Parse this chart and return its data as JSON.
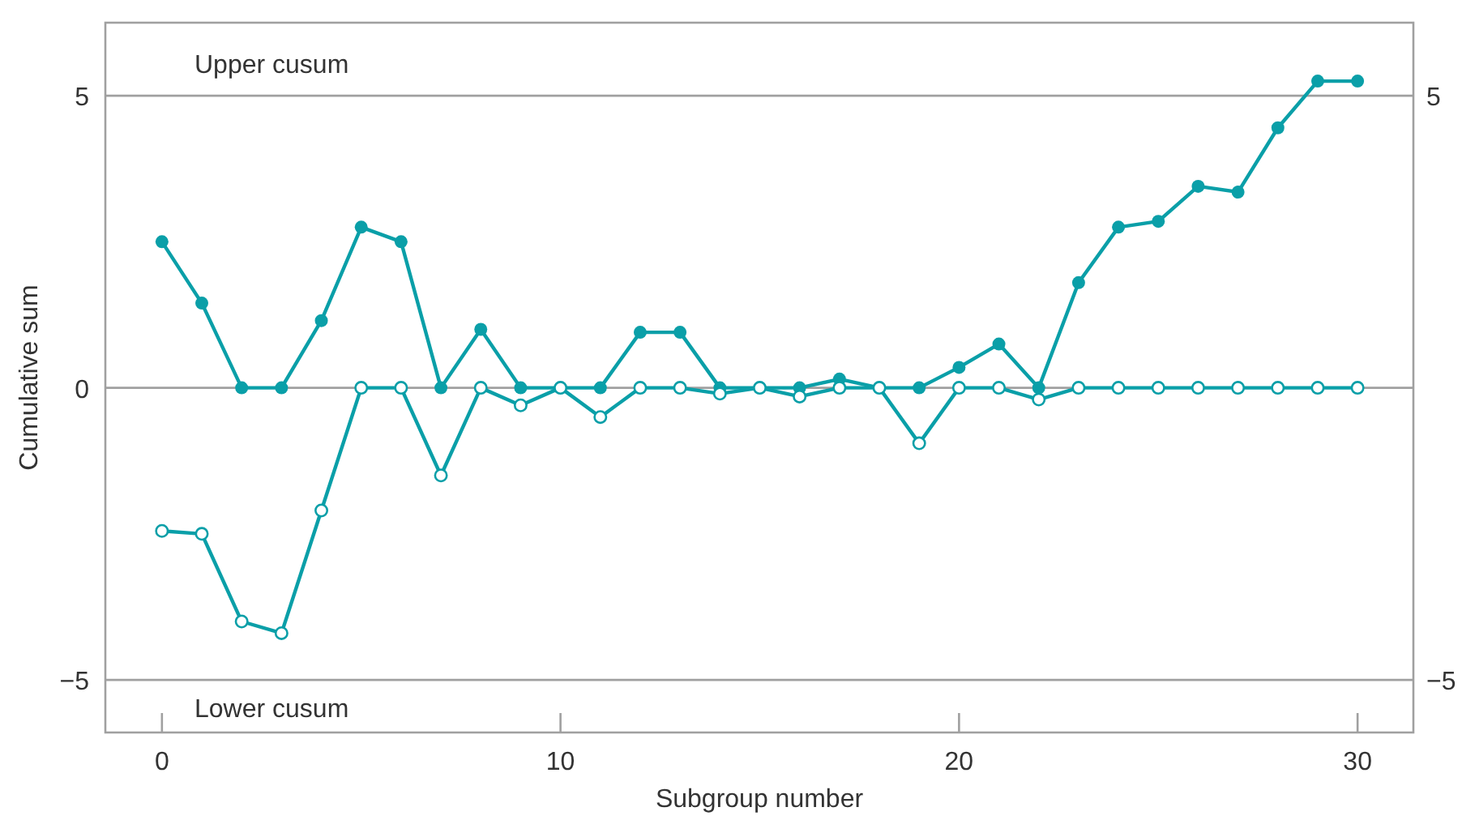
{
  "chart_data": {
    "type": "line",
    "xlabel": "Subgroup number",
    "ylabel": "Cumulative sum",
    "x": [
      0,
      1,
      2,
      3,
      4,
      5,
      6,
      7,
      8,
      9,
      10,
      11,
      12,
      13,
      14,
      15,
      16,
      17,
      18,
      19,
      20,
      21,
      22,
      23,
      24,
      25,
      26,
      27,
      28,
      29,
      30
    ],
    "series": [
      {
        "color": "#0a9fa8",
        "marker": "circle",
        "values": [
          2.5,
          1.45,
          0,
          0,
          1.15,
          2.75,
          2.5,
          0,
          1.0,
          0,
          0,
          0,
          0.95,
          0.95,
          0,
          0,
          0,
          0.15,
          0,
          0,
          0.35,
          0.75,
          0,
          1.8,
          2.75,
          2.85,
          3.45,
          3.35,
          4.45,
          5.25,
          5.25
        ]
      },
      {
        "color": "#0a9fa8",
        "marker": "circle",
        "values": [
          -2.45,
          -2.5,
          -4.0,
          -4.2,
          -2.1,
          0,
          0,
          -1.5,
          0,
          -0.3,
          0,
          -0.5,
          0,
          0,
          -0.1,
          0,
          -0.15,
          0,
          0,
          -0.95,
          0,
          0,
          -0.2,
          0,
          0,
          0,
          0,
          0,
          0,
          0,
          0
        ]
      }
    ],
    "xlim": [
      -1.42,
      31.4
    ],
    "xticks": [
      0,
      10,
      20,
      30
    ],
    "ylim": [
      -5.9,
      6.25
    ],
    "yticks": [
      {
        "value": -5,
        "label": "−5"
      },
      0,
      5
    ],
    "y2lim": [
      -5.9,
      6.25
    ],
    "y2ticks": [
      {
        "value": -5,
        "label": "−5"
      },
      5
    ],
    "ref_lines": [
      {
        "axis": "y",
        "value": 5,
        "label": "Upper cusum",
        "color": "#a0a0a0"
      },
      {
        "axis": "y",
        "value": 0,
        "color": "#a0a0a0"
      },
      {
        "axis": "y",
        "value": -5,
        "label": "Lower cusum",
        "color": "#a0a0a0"
      }
    ],
    "grid": false,
    "line_style": "solid"
  }
}
